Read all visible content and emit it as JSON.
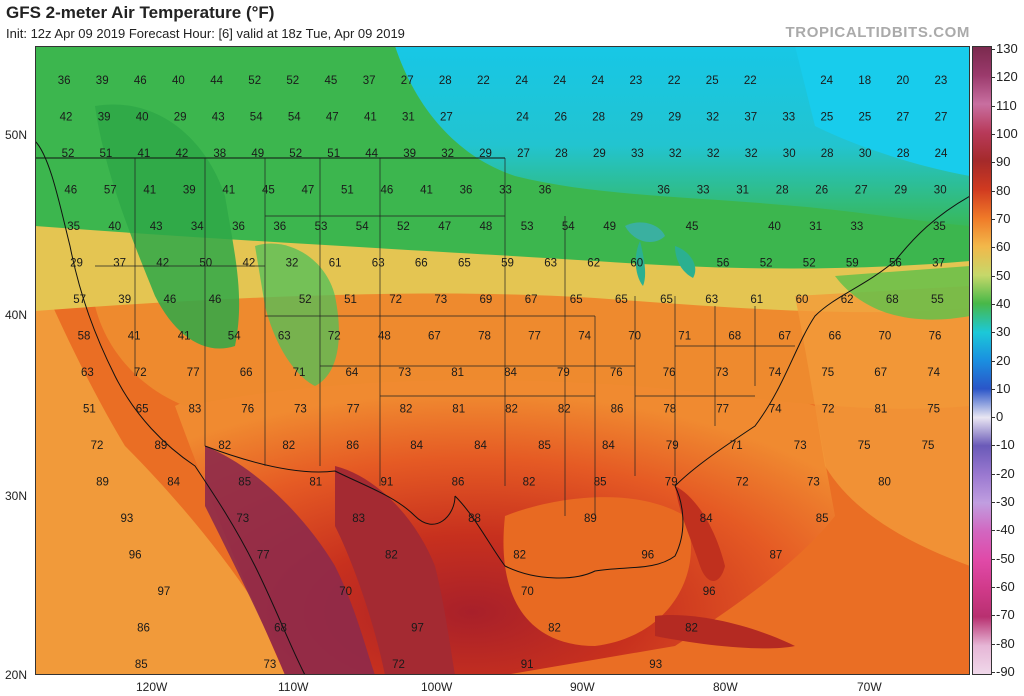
{
  "header": {
    "title": "GFS 2-meter Air Temperature (°F)",
    "subtitle": "Init: 12z Apr 09 2019   Forecast Hour: [6]   valid at 18z Tue, Apr 09 2019",
    "brand": "TROPICALTIDBITS.COM"
  },
  "axes": {
    "lat_labels": [
      "50N",
      "40N",
      "30N",
      "20N"
    ],
    "lon_labels": [
      "120W",
      "110W",
      "100W",
      "90W",
      "80W",
      "70W"
    ]
  },
  "colorbar": {
    "labels": [
      "130",
      "120",
      "110",
      "100",
      "90",
      "80",
      "70",
      "60",
      "50",
      "40",
      "30",
      "20",
      "10",
      "0",
      "-10",
      "-20",
      "-30",
      "-40",
      "-50",
      "-60",
      "-70",
      "-80",
      "-90"
    ],
    "colors": {
      "130": "#7b2a4e",
      "120": "#9b3a6c",
      "110": "#c86fa0",
      "100": "#b83a5a",
      "90": "#a52a2a",
      "80": "#d03a20",
      "70": "#f07a28",
      "60": "#f2b84a",
      "50": "#c6d86a",
      "40": "#48b848",
      "30": "#1cc8d8",
      "20": "#1a8fe0",
      "10": "#2a55c8",
      "0": "#e9e6f2",
      "-10": "#6a5ab8",
      "-20": "#9a78d0",
      "-30": "#c09ee0",
      "-40": "#d266c0",
      "-50": "#e04aa8",
      "-60": "#d03a8a",
      "-70": "#b83070",
      "-80": "#e6b6d6",
      "-90": "#f0d8ea"
    }
  },
  "temperature_labels": [
    [
      "36",
      "39",
      "46",
      "40",
      "44",
      "52",
      "52",
      "45",
      "37",
      "27",
      "28",
      "22",
      "24",
      "24",
      "24",
      "23",
      "22",
      "25",
      "22",
      "",
      "24",
      "18",
      "20",
      "23"
    ],
    [
      "42",
      "39",
      "40",
      "29",
      "43",
      "54",
      "54",
      "47",
      "41",
      "31",
      "27",
      "",
      "24",
      "26",
      "28",
      "29",
      "29",
      "32",
      "37",
      "33",
      "25",
      "25",
      "27",
      "27"
    ],
    [
      "52",
      "51",
      "41",
      "42",
      "38",
      "49",
      "52",
      "51",
      "44",
      "39",
      "32",
      "29",
      "27",
      "28",
      "29",
      "33",
      "32",
      "32",
      "32",
      "30",
      "28",
      "30",
      "28",
      "24"
    ],
    [
      "46",
      "57",
      "41",
      "39",
      "41",
      "45",
      "47",
      "51",
      "46",
      "41",
      "36",
      "33",
      "36",
      "",
      "",
      "36",
      "33",
      "31",
      "28",
      "26",
      "27",
      "29",
      "30"
    ],
    [
      "35",
      "40",
      "43",
      "34",
      "36",
      "36",
      "53",
      "54",
      "52",
      "47",
      "48",
      "53",
      "54",
      "49",
      "",
      "45",
      "",
      "40",
      "31",
      "33",
      "",
      "35"
    ],
    [
      "29",
      "37",
      "42",
      "50",
      "42",
      "32",
      "61",
      "63",
      "66",
      "65",
      "59",
      "63",
      "62",
      "60",
      "",
      "56",
      "52",
      "52",
      "59",
      "56",
      "37"
    ],
    [
      "57",
      "39",
      "46",
      "46",
      "",
      "52",
      "51",
      "72",
      "73",
      "69",
      "67",
      "65",
      "65",
      "65",
      "63",
      "61",
      "60",
      "62",
      "68",
      "55"
    ],
    [
      "58",
      "41",
      "41",
      "54",
      "63",
      "72",
      "48",
      "67",
      "78",
      "77",
      "74",
      "70",
      "71",
      "68",
      "67",
      "66",
      "70",
      "76"
    ],
    [
      "63",
      "72",
      "77",
      "66",
      "71",
      "64",
      "73",
      "81",
      "84",
      "79",
      "76",
      "76",
      "73",
      "74",
      "75",
      "67",
      "74"
    ],
    [
      "51",
      "65",
      "83",
      "76",
      "73",
      "77",
      "82",
      "81",
      "82",
      "82",
      "86",
      "78",
      "77",
      "74",
      "72",
      "81",
      "75"
    ],
    [
      "72",
      "89",
      "82",
      "82",
      "86",
      "84",
      "84",
      "85",
      "84",
      "79",
      "71",
      "73",
      "75",
      "75"
    ],
    [
      "89",
      "84",
      "85",
      "81",
      "91",
      "86",
      "82",
      "85",
      "79",
      "72",
      "73",
      "80"
    ],
    [
      "93",
      "73",
      "83",
      "88",
      "89",
      "84",
      "85"
    ],
    [
      "96",
      "77",
      "82",
      "82",
      "96",
      "87"
    ],
    [
      "97",
      "70",
      "70",
      "96"
    ],
    [
      "86",
      "68",
      "97",
      "82",
      "82"
    ],
    [
      "85",
      "73",
      "72",
      "91",
      "93"
    ]
  ],
  "map_meta": {
    "variable": "2-meter Air Temperature",
    "units": "°F",
    "model": "GFS",
    "init": "12z Apr 09 2019",
    "forecast_hour": "6",
    "valid": "18z Tue, Apr 09 2019"
  }
}
